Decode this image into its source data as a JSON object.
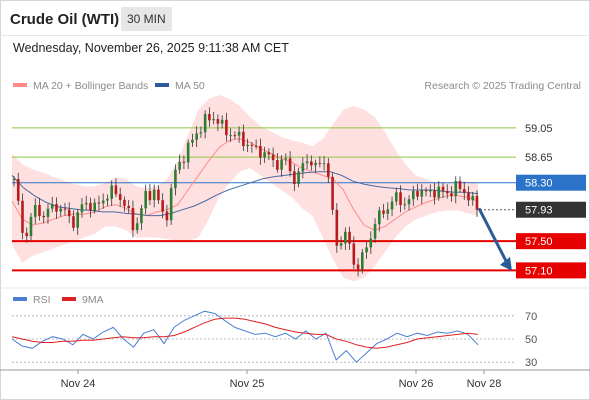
{
  "header": {
    "title": "Crude Oil (WTI)",
    "timeframe_label": "30 MIN",
    "timestamp": "Wednesday, November 26, 2025 9:11:38 AM CET"
  },
  "legend": {
    "ma20_label": "MA 20 + Bollinger Bands",
    "ma50_label": "MA 50",
    "ma20_color": "#ff8a8a",
    "ma50_color": "#2b5c99",
    "credit": "Research © 2025 Trading Central"
  },
  "rsi_legend": {
    "rsi_label": "RSI",
    "ma9_label": "9MA",
    "rsi_color": "#4a7fd4",
    "ma9_color": "#e02020"
  },
  "chart_data": [
    {
      "type": "candlestick",
      "x_ticks": [
        "Nov 24",
        "Nov 25",
        "Nov 26",
        "Nov 28"
      ],
      "ylim": [
        56.9,
        59.5
      ],
      "levels": [
        {
          "value": 59.05,
          "label": "59.05",
          "kind": "resistance",
          "color": "#8ec63f"
        },
        {
          "value": 58.65,
          "label": "58.65",
          "kind": "resistance",
          "color": "#8ec63f"
        },
        {
          "value": 58.3,
          "label": "58.30",
          "kind": "pivot",
          "color": "#2b73c9"
        },
        {
          "value": 57.93,
          "label": "57.93",
          "kind": "last-price",
          "color": "#333333"
        },
        {
          "value": 57.5,
          "label": "57.50",
          "kind": "support",
          "color": "#e60000"
        },
        {
          "value": 57.1,
          "label": "57.10",
          "kind": "support",
          "color": "#e60000"
        }
      ],
      "arrow": {
        "from": 57.95,
        "to": 57.12,
        "direction": "down",
        "color": "#2b5c99"
      },
      "price_path": [
        58.35,
        57.5,
        57.95,
        57.85,
        58.0,
        57.9,
        57.75,
        58.05,
        57.95,
        58.1,
        58.2,
        58.0,
        57.65,
        58.1,
        58.2,
        57.75,
        58.45,
        58.7,
        58.95,
        59.15,
        59.2,
        59.0,
        58.95,
        58.85,
        58.75,
        58.7,
        58.55,
        58.6,
        58.3,
        58.65,
        58.5,
        58.65,
        57.45,
        57.6,
        57.1,
        57.4,
        57.8,
        57.95,
        58.1,
        58.0,
        58.2,
        58.15,
        58.2,
        58.15,
        58.25,
        58.15,
        57.93
      ],
      "ma20": [
        58.05,
        57.8,
        57.72,
        57.75,
        57.8,
        57.85,
        57.87,
        57.87,
        57.9,
        57.97,
        58.0,
        57.95,
        57.87,
        57.85,
        57.9,
        57.93,
        58.0,
        58.2,
        58.4,
        58.6,
        58.78,
        58.88,
        58.9,
        58.85,
        58.77,
        58.7,
        58.63,
        58.58,
        58.5,
        58.45,
        58.4,
        58.35,
        58.2,
        57.93,
        57.72,
        57.65,
        57.7,
        57.8,
        57.9,
        57.97,
        58.03,
        58.08,
        58.12,
        58.12,
        58.1,
        58.05
      ],
      "ma50": [
        58.4,
        58.23,
        58.12,
        58.03,
        57.97,
        57.95,
        57.93,
        57.92,
        57.9,
        57.9,
        57.88,
        57.87,
        57.85,
        57.85,
        57.88,
        57.93,
        57.98,
        58.05,
        58.13,
        58.2,
        58.25,
        58.3,
        58.35,
        58.38,
        58.4,
        58.42,
        58.44,
        58.45,
        58.45,
        58.4,
        58.32,
        58.28,
        58.25,
        58.23,
        58.22,
        58.2,
        58.2,
        58.2,
        58.18,
        58.17,
        58.17,
        58.15
      ],
      "bb_upper": [
        58.7,
        58.55,
        58.48,
        58.44,
        58.38,
        58.33,
        58.28,
        58.25,
        58.25,
        58.3,
        58.37,
        58.35,
        58.25,
        58.22,
        58.25,
        58.35,
        58.6,
        58.95,
        59.3,
        59.45,
        59.5,
        59.45,
        59.35,
        59.2,
        59.08,
        59.0,
        58.93,
        58.88,
        58.85,
        58.8,
        58.9,
        59.1,
        59.3,
        59.35,
        59.3,
        59.2,
        59.0,
        58.75,
        58.55,
        58.4,
        58.35,
        58.3,
        58.3,
        58.32,
        58.32,
        58.3
      ],
      "bb_lower": [
        57.45,
        57.2,
        57.3,
        57.35,
        57.4,
        57.45,
        57.5,
        57.55,
        57.6,
        57.7,
        57.7,
        57.65,
        57.55,
        57.55,
        57.55,
        57.53,
        57.5,
        57.5,
        57.55,
        57.8,
        58.1,
        58.3,
        58.45,
        58.5,
        58.4,
        58.3,
        58.2,
        58.1,
        57.95,
        57.85,
        57.55,
        57.25,
        57.0,
        56.95,
        57.0,
        57.15,
        57.35,
        57.55,
        57.7,
        57.8,
        57.85,
        57.9,
        57.92,
        57.92,
        57.88,
        57.85
      ]
    },
    {
      "type": "line",
      "name": "RSI",
      "ylim": [
        25,
        75
      ],
      "y_ticks": [
        70,
        50,
        30
      ],
      "rsi": [
        50,
        44,
        42,
        48,
        52,
        50,
        45,
        54,
        50,
        56,
        60,
        50,
        43,
        55,
        58,
        46,
        60,
        66,
        70,
        74,
        72,
        66,
        60,
        57,
        54,
        55,
        52,
        55,
        50,
        57,
        50,
        55,
        32,
        40,
        30,
        38,
        46,
        50,
        55,
        52,
        55,
        53,
        56,
        55,
        57,
        54,
        45
      ],
      "ma9": [
        52,
        50,
        48,
        47,
        47,
        48,
        48,
        49,
        49,
        50,
        51,
        52,
        51,
        51,
        52,
        52,
        53,
        56,
        60,
        64,
        67,
        68,
        68,
        67,
        65,
        63,
        60,
        58,
        56,
        55,
        54,
        54,
        50,
        48,
        45,
        43,
        42,
        43,
        45,
        47,
        50,
        51,
        52,
        53,
        54,
        55,
        54
      ]
    }
  ]
}
